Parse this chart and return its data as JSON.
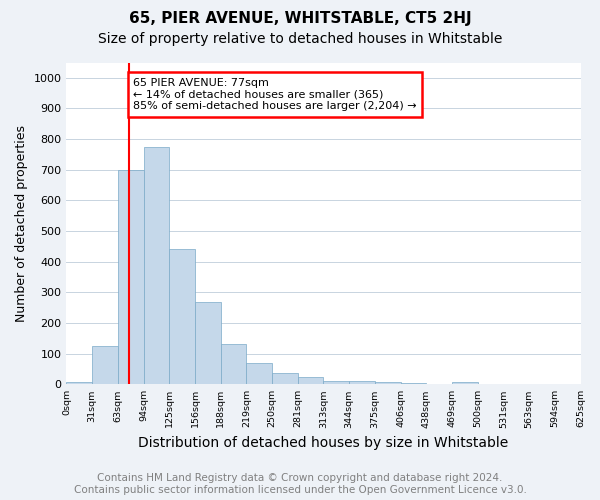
{
  "title": "65, PIER AVENUE, WHITSTABLE, CT5 2HJ",
  "subtitle": "Size of property relative to detached houses in Whitstable",
  "xlabel": "Distribution of detached houses by size in Whitstable",
  "ylabel": "Number of detached properties",
  "bar_labels": [
    "0sqm",
    "31sqm",
    "63sqm",
    "94sqm",
    "125sqm",
    "156sqm",
    "188sqm",
    "219sqm",
    "250sqm",
    "281sqm",
    "313sqm",
    "344sqm",
    "375sqm",
    "406sqm",
    "438sqm",
    "469sqm",
    "500sqm",
    "531sqm",
    "563sqm",
    "594sqm",
    "625sqm"
  ],
  "bar_values": [
    8,
    125,
    700,
    775,
    440,
    270,
    130,
    70,
    38,
    25,
    12,
    12,
    8,
    4,
    0,
    8,
    0,
    0,
    0,
    0
  ],
  "bar_color": "#c5d8ea",
  "bar_edge_color": "#7aaac8",
  "bar_width": 1.0,
  "ylim": [
    0,
    1050
  ],
  "yticks": [
    0,
    100,
    200,
    300,
    400,
    500,
    600,
    700,
    800,
    900,
    1000
  ],
  "vline_color": "red",
  "annotation_text": "65 PIER AVENUE: 77sqm\n← 14% of detached houses are smaller (365)\n85% of semi-detached houses are larger (2,204) →",
  "annotation_box_color": "red",
  "annotation_text_color": "black",
  "annotation_fontsize": 8.0,
  "title_fontsize": 11,
  "subtitle_fontsize": 10,
  "xlabel_fontsize": 10,
  "ylabel_fontsize": 9,
  "footer_line1": "Contains HM Land Registry data © Crown copyright and database right 2024.",
  "footer_line2": "Contains public sector information licensed under the Open Government Licence v3.0.",
  "footer_fontsize": 7.5,
  "background_color": "#eef2f7",
  "plot_bg_color": "#ffffff",
  "grid_color": "#c8d4e0"
}
